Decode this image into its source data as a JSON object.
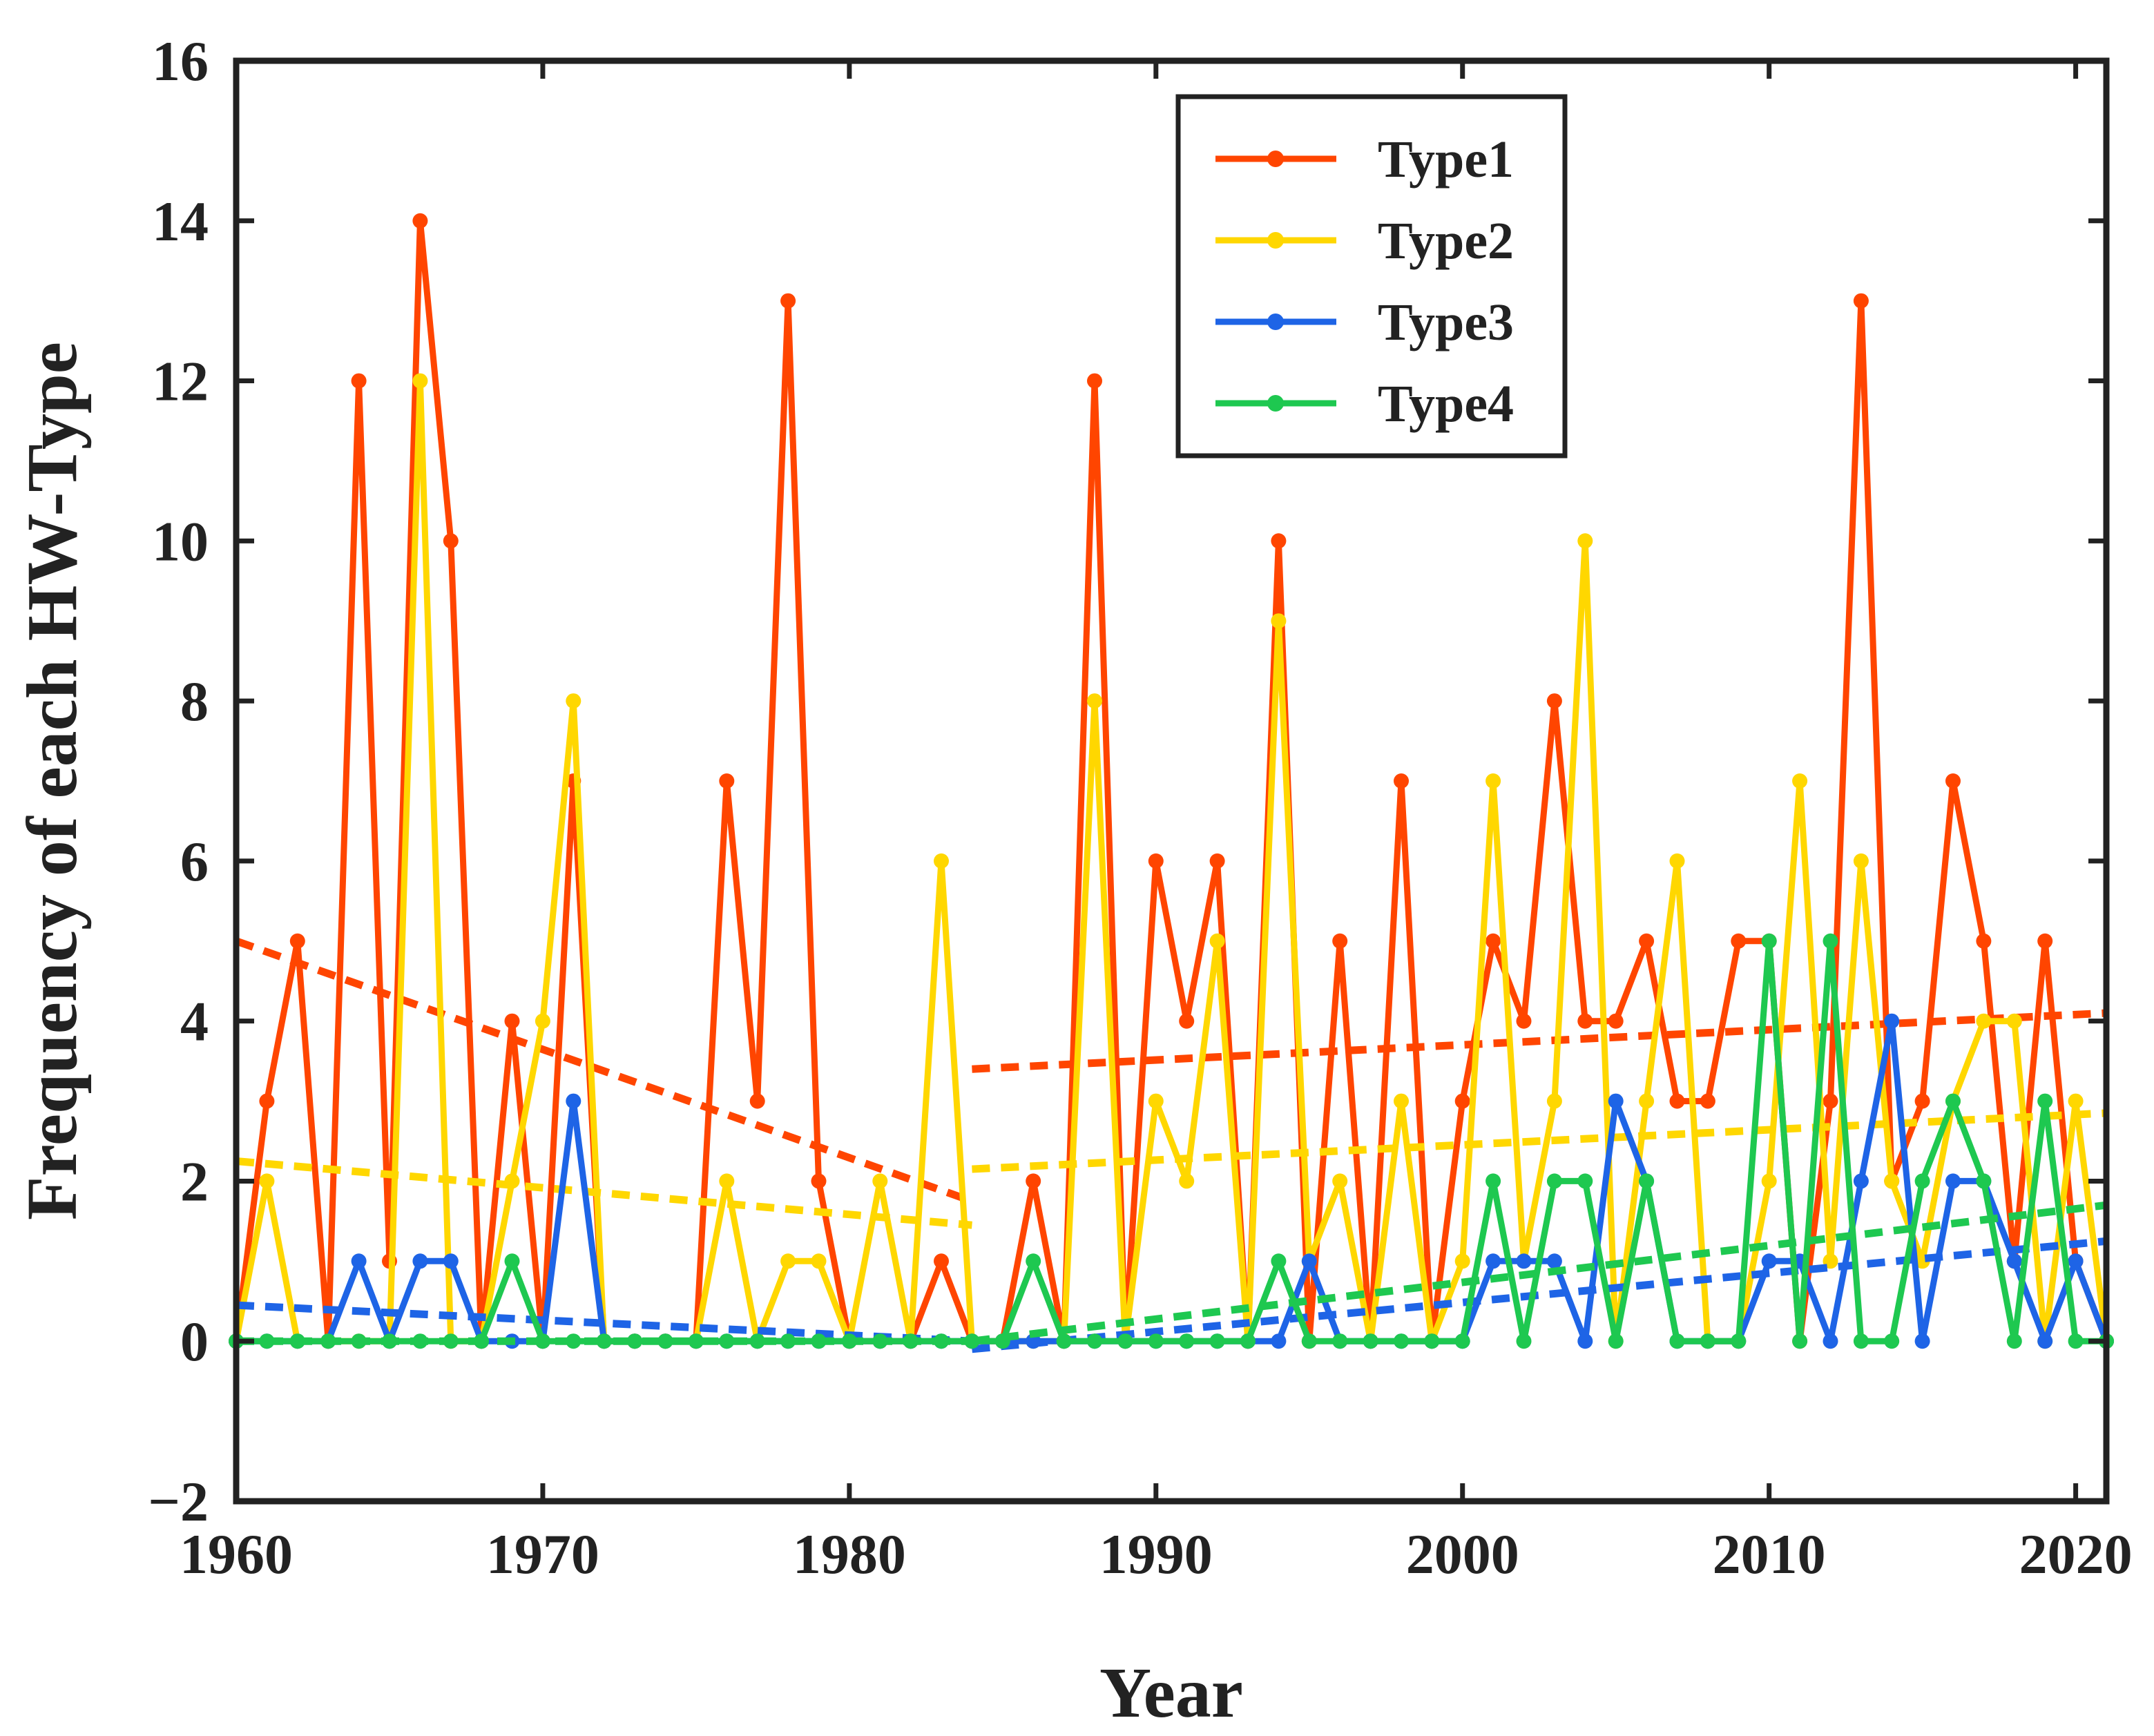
{
  "chart_data": {
    "type": "line",
    "title": "",
    "xlabel": "Year",
    "ylabel": "Frequency of each HW-Type",
    "xlim": [
      1960,
      2021
    ],
    "ylim": [
      -2,
      16
    ],
    "xticks": [
      1960,
      1970,
      1980,
      1990,
      2000,
      2010,
      2020
    ],
    "yticks": [
      -2,
      0,
      2,
      4,
      6,
      8,
      10,
      12,
      14,
      16
    ],
    "grid": false,
    "legend_position": "top-center",
    "x": [
      1960,
      1961,
      1962,
      1963,
      1964,
      1965,
      1966,
      1967,
      1968,
      1969,
      1970,
      1971,
      1972,
      1973,
      1974,
      1975,
      1976,
      1977,
      1978,
      1979,
      1980,
      1981,
      1982,
      1983,
      1984,
      1985,
      1986,
      1987,
      1988,
      1989,
      1990,
      1991,
      1992,
      1993,
      1994,
      1995,
      1996,
      1997,
      1998,
      1999,
      2000,
      2001,
      2002,
      2003,
      2004,
      2005,
      2006,
      2007,
      2008,
      2009,
      2010,
      2011,
      2012,
      2013,
      2014,
      2015,
      2016,
      2017,
      2018,
      2019,
      2020,
      2021
    ],
    "series": [
      {
        "name": "Type1",
        "color": "#ff4500",
        "values": [
          0,
          3,
          5,
          0,
          12,
          1,
          14,
          10,
          0,
          4,
          0,
          7,
          0,
          0,
          0,
          0,
          7,
          3,
          13,
          2,
          0,
          0,
          0,
          1,
          0,
          0,
          2,
          0,
          12,
          0,
          6,
          4,
          6,
          0,
          10,
          0,
          5,
          0,
          7,
          0,
          3,
          5,
          4,
          8,
          4,
          4,
          5,
          3,
          3,
          5,
          5,
          0,
          3,
          13,
          2,
          3,
          7,
          5,
          1,
          5,
          1,
          0
        ],
        "trend_segments": [
          {
            "from": 1960,
            "to": 1984,
            "start": 5.0,
            "end": 1.75
          },
          {
            "from": 1984,
            "to": 2021,
            "start": 3.4,
            "end": 4.1
          }
        ]
      },
      {
        "name": "Type2",
        "color": "#ffd700",
        "values": [
          0,
          2,
          0,
          0,
          0,
          0,
          12,
          0,
          0,
          2,
          4,
          8,
          0,
          0,
          0,
          0,
          2,
          0,
          1,
          1,
          0,
          2,
          0,
          6,
          0,
          0,
          0,
          0,
          8,
          0,
          3,
          2,
          5,
          0,
          9,
          1,
          2,
          0,
          3,
          0,
          1,
          7,
          1,
          3,
          10,
          0,
          3,
          6,
          0,
          0,
          2,
          7,
          1,
          6,
          2,
          1,
          3,
          4,
          4,
          0,
          3,
          0
        ],
        "trend_segments": [
          {
            "from": 1960,
            "to": 1984,
            "start": 2.25,
            "end": 1.45
          },
          {
            "from": 1984,
            "to": 2021,
            "start": 2.15,
            "end": 2.85
          }
        ]
      },
      {
        "name": "Type3",
        "color": "#1e64e6",
        "values": [
          0,
          0,
          0,
          0,
          1,
          0,
          1,
          1,
          0,
          0,
          0,
          3,
          0,
          0,
          0,
          0,
          0,
          0,
          0,
          0,
          0,
          0,
          0,
          0,
          0,
          0,
          0,
          0,
          0,
          0,
          0,
          0,
          0,
          0,
          0,
          1,
          0,
          0,
          0,
          0,
          0,
          1,
          1,
          1,
          0,
          3,
          2,
          0,
          0,
          0,
          1,
          1,
          0,
          2,
          4,
          0,
          2,
          2,
          1,
          0,
          1,
          0
        ],
        "trend_segments": [
          {
            "from": 1960,
            "to": 1984,
            "start": 0.45,
            "end": 0.0
          },
          {
            "from": 1984,
            "to": 2021,
            "start": -0.1,
            "end": 1.25
          }
        ]
      },
      {
        "name": "Type4",
        "color": "#1ec850",
        "values": [
          0,
          0,
          0,
          0,
          0,
          0,
          0,
          0,
          0,
          1,
          0,
          0,
          0,
          0,
          0,
          0,
          0,
          0,
          0,
          0,
          0,
          0,
          0,
          0,
          0,
          0,
          1,
          0,
          0,
          0,
          0,
          0,
          0,
          0,
          1,
          0,
          0,
          0,
          0,
          0,
          0,
          2,
          0,
          2,
          2,
          0,
          2,
          0,
          0,
          0,
          5,
          0,
          5,
          0,
          0,
          2,
          3,
          2,
          0,
          3,
          0,
          0
        ],
        "trend_segments": [
          {
            "from": 1960,
            "to": 1984,
            "start": 0.0,
            "end": 0.0
          },
          {
            "from": 1984,
            "to": 2021,
            "start": 0.0,
            "end": 1.7
          }
        ]
      }
    ]
  }
}
